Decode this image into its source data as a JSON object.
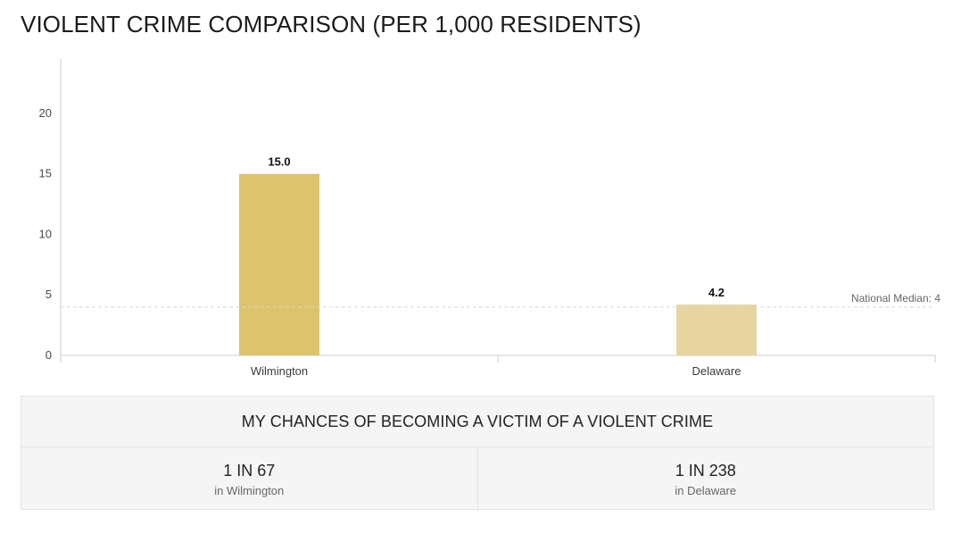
{
  "title": "VIOLENT CRIME COMPARISON (PER 1,000 RESIDENTS)",
  "chart_data": {
    "type": "bar",
    "categories": [
      "Wilmington",
      "Delaware"
    ],
    "values": [
      15.0,
      4.2
    ],
    "value_labels": [
      "15.0",
      "4.2"
    ],
    "colors": [
      "#dcc36e",
      "#e6d59e"
    ],
    "yticks": [
      0,
      5,
      10,
      15,
      20
    ],
    "ylim": [
      0,
      24.5
    ],
    "reference_line": {
      "label": "National Median: 4",
      "value": 4
    }
  },
  "chances": {
    "heading": "MY CHANCES OF BECOMING A VICTIM OF A VIOLENT CRIME",
    "items": [
      {
        "odds": "1 IN 67",
        "place": "in Wilmington"
      },
      {
        "odds": "1 IN 238",
        "place": "in Delaware"
      }
    ]
  }
}
